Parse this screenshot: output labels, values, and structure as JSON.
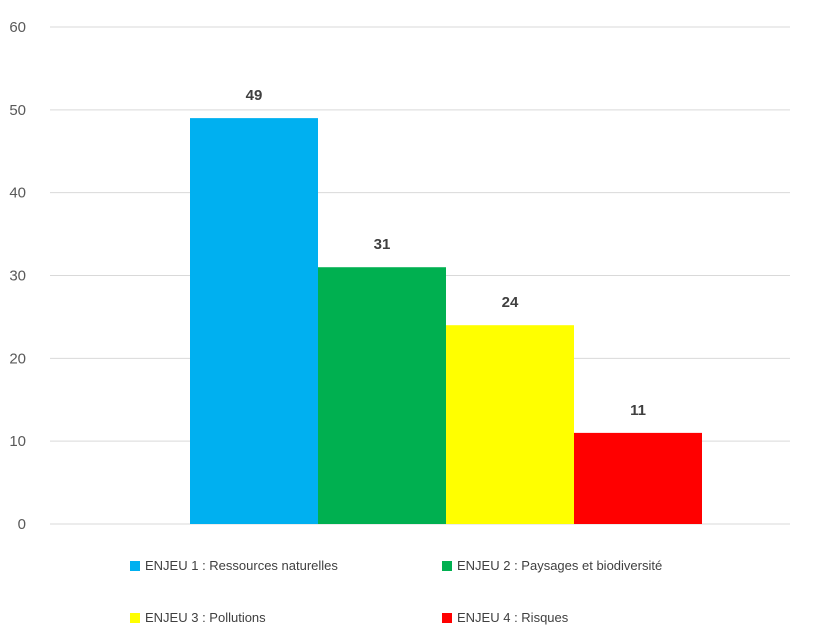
{
  "chart_data": {
    "type": "bar",
    "categories": [
      "ENJEU 1 : Ressources naturelles",
      "ENJEU 2 : Paysages et biodiversité",
      "ENJEU 3 : Pollutions",
      "ENJEU 4 : Risques"
    ],
    "values": [
      49,
      31,
      24,
      11
    ],
    "colors": [
      "#00B0F0",
      "#00B050",
      "#FFFF00",
      "#FF0000"
    ],
    "ylim": [
      0,
      60
    ],
    "yticks": [
      0,
      10,
      20,
      30,
      40,
      50,
      60
    ],
    "grid": true,
    "legend_position": "bottom"
  }
}
